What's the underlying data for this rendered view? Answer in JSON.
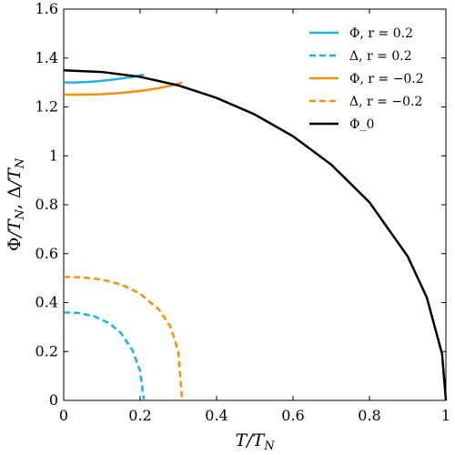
{
  "chart_data": {
    "type": "line",
    "title": "",
    "xlabel": "T/T_N",
    "ylabel": "Φ/T_N, Δ/T_N",
    "xlim": [
      0,
      1
    ],
    "ylim": [
      0,
      1.6
    ],
    "xticks": [
      0,
      0.2,
      0.4,
      0.6,
      0.8,
      1
    ],
    "xtick_labels": [
      "0",
      "0.2",
      "0.4",
      "0.6",
      "0.8",
      "1"
    ],
    "yticks": [
      0,
      0.2,
      0.4,
      0.6,
      0.8,
      1,
      1.2,
      1.4,
      1.6
    ],
    "ytick_labels": [
      "0",
      "0.2",
      "0.4",
      "0.6",
      "0.8",
      "1",
      "1.2",
      "1.4",
      "1.6"
    ],
    "grid": false,
    "legend_position": "top-right",
    "series": [
      {
        "name": "Φ, r = 0.2",
        "color": "#1ab2e8",
        "dash": "solid",
        "x": [
          0,
          0.03,
          0.06,
          0.09,
          0.12,
          0.15,
          0.18,
          0.21
        ],
        "y": [
          1.3,
          1.3,
          1.302,
          1.305,
          1.31,
          1.316,
          1.323,
          1.332
        ]
      },
      {
        "name": "Δ, r = 0.2",
        "color": "#1ab2e8",
        "dash": "dashed",
        "x": [
          0,
          0.04,
          0.08,
          0.12,
          0.15,
          0.18,
          0.2,
          0.21
        ],
        "y": [
          0.36,
          0.357,
          0.344,
          0.315,
          0.275,
          0.205,
          0.12,
          0
        ]
      },
      {
        "name": "Φ, r = −0.2",
        "color": "#f5900e",
        "dash": "solid",
        "x": [
          0,
          0.05,
          0.1,
          0.15,
          0.2,
          0.25,
          0.29,
          0.31
        ],
        "y": [
          1.25,
          1.25,
          1.252,
          1.257,
          1.265,
          1.277,
          1.29,
          1.3
        ]
      },
      {
        "name": "Δ, r = −0.2",
        "color": "#f5900e",
        "dash": "dashed",
        "x": [
          0,
          0.05,
          0.1,
          0.15,
          0.2,
          0.25,
          0.28,
          0.3,
          0.31
        ],
        "y": [
          0.505,
          0.503,
          0.494,
          0.474,
          0.437,
          0.37,
          0.3,
          0.2,
          0
        ]
      },
      {
        "name": "Φ_0",
        "color": "#000000",
        "dash": "solid",
        "x": [
          0,
          0.1,
          0.2,
          0.3,
          0.4,
          0.5,
          0.6,
          0.7,
          0.8,
          0.9,
          0.95,
          0.99,
          1.0
        ],
        "y": [
          1.35,
          1.343,
          1.323,
          1.288,
          1.237,
          1.169,
          1.08,
          0.964,
          0.81,
          0.589,
          0.421,
          0.19,
          0
        ]
      }
    ]
  }
}
